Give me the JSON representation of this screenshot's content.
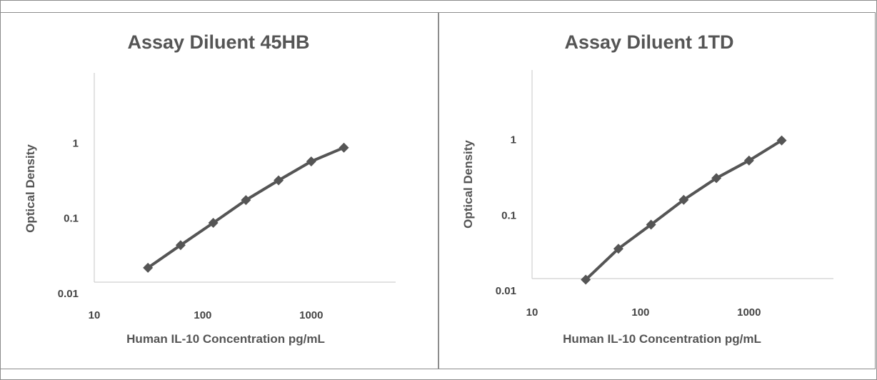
{
  "chart_data": [
    {
      "type": "line",
      "title": "Assay Diluent 45HB",
      "xlabel": "Human IL-10 Concentration pg/mL",
      "ylabel": "Optical Density",
      "xscale": "log",
      "yscale": "log",
      "xlim": [
        10,
        6000
      ],
      "ylim": [
        0.01,
        10
      ],
      "xticks": [
        "10",
        "100",
        "1000"
      ],
      "yticks": [
        "0.01",
        "0.1",
        "1"
      ],
      "grid": false,
      "legend": "none",
      "line_color": "#555555",
      "series": [
        {
          "x": [
            31.25,
            62.5,
            125,
            250,
            500,
            1000,
            2000
          ],
          "y": [
            0.022,
            0.044,
            0.087,
            0.175,
            0.32,
            0.57,
            0.87
          ]
        }
      ]
    },
    {
      "type": "line",
      "title": "Assay Diluent 1TD",
      "xlabel": "Human IL-10 Concentration pg/mL",
      "ylabel": "Optical Density",
      "xscale": "log",
      "yscale": "log",
      "xlim": [
        10,
        6000
      ],
      "ylim": [
        0.01,
        10
      ],
      "xticks": [
        "10",
        "100",
        "1000"
      ],
      "yticks": [
        "0.01",
        "0.1",
        "1"
      ],
      "grid": false,
      "legend": "none",
      "line_color": "#555555",
      "series": [
        {
          "x": [
            31.25,
            62.5,
            125,
            250,
            500,
            1000,
            2000
          ],
          "y": [
            0.014,
            0.036,
            0.075,
            0.16,
            0.31,
            0.53,
            0.98
          ]
        }
      ]
    }
  ]
}
